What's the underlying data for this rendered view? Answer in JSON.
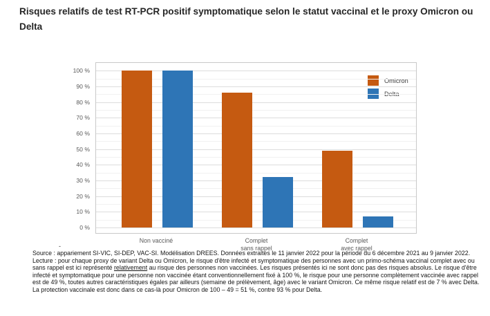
{
  "page": {
    "title": "Risques relatifs de test RT-PCR positif symptomatique selon le statut vaccinal et le proxy Omicron ou Delta"
  },
  "chart_data": {
    "type": "bar",
    "title": "Risques relatifs de test RT-PCR positif symptomatique selon le statut vaccinal et le proxy Omicron ou Delta",
    "categories": [
      "Non vacciné",
      "Complet\nsans rappel",
      "Complet\navec rappel"
    ],
    "series": [
      {
        "name": "Omicron",
        "color": "#C55A11",
        "values": [
          100,
          86,
          49
        ]
      },
      {
        "name": "Delta",
        "color": "#2E75B6",
        "values": [
          100,
          32,
          7
        ]
      }
    ],
    "xlabel": "",
    "ylabel": "",
    "ylim": [
      0,
      100
    ],
    "y_tick_step": 10,
    "y_minor_step": 5,
    "y_tick_suffix": " %",
    "grid": true,
    "legend_position": "top-right"
  },
  "footnote": {
    "dash": "-",
    "source": "Source : appariement SI-VIC, SI-DEP, VAC-SI. Modélisation DREES. Données extraites le 11 janvier 2022 pour la période du 6 décembre 2021 au 9 janvier 2022.",
    "lecture_before": "Lecture : pour chaque proxy de variant Delta ou Omicron, le risque d'être infecté et symptomatique des personnes avec un primo-schéma vaccinal complet avec ou sans rappel est ici représenté ",
    "lecture_underlined": "relativement",
    "lecture_after": " au risque des personnes non vaccinées. Les risques présentés ici ne sont donc pas des risques absolus. Le risque d'être infecté et symptomatique pour une personne non vaccinée étant conventionnellement fixé à 100 %, le risque pour une personne complètement vaccinée avec rappel est de 49 %, toutes autres caractéristiques égales par ailleurs (semaine de prélèvement, âge) avec le variant Omicron. Ce même risque relatif est de 7 % avec Delta. La protection vaccinale est donc dans ce cas-là pour Omicron de 100 – 49 = 51 %, contre 93 % pour Delta."
  },
  "colors": {
    "omicron": "#C55A11",
    "delta": "#2E75B6",
    "grid_major": "#dcdcdc",
    "grid_minor": "#f1f1f1",
    "frame": "#c9c9c9",
    "tick_text": "#595959"
  }
}
